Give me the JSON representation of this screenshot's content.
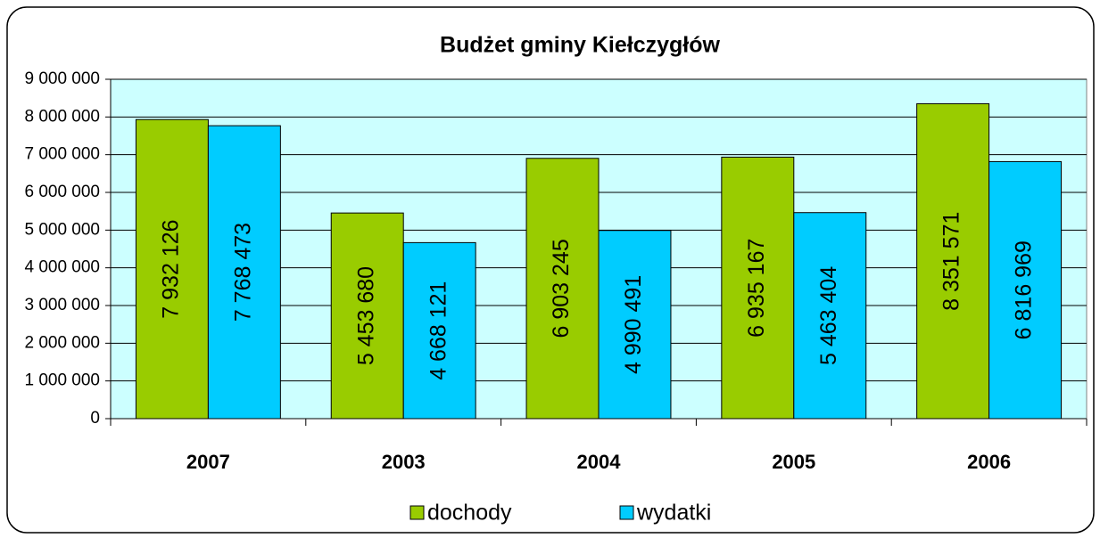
{
  "chart_data": {
    "type": "bar",
    "title": "Budżet gminy Kiełczygłów",
    "categories": [
      "2007",
      "2003",
      "2004",
      "2005",
      "2006"
    ],
    "series": [
      {
        "name": "dochody",
        "color": "#99cc00",
        "values": [
          7932126,
          5453680,
          6903245,
          6935167,
          8351571
        ],
        "value_labels": [
          "7 932 126",
          "5 453 680",
          "6 903 245",
          "6 935 167",
          "8 351 571"
        ]
      },
      {
        "name": "wydatki",
        "color": "#00ccff",
        "values": [
          7768473,
          4668121,
          4990491,
          5463404,
          6816969
        ],
        "value_labels": [
          "7 768 473",
          "4 668 121",
          "4 990 491",
          "5 463 404",
          "6 816 969"
        ]
      }
    ],
    "ylim": [
      0,
      9000000
    ],
    "yticks": [
      0,
      {
        "value": 1000000,
        "label": "1 000 000"
      },
      {
        "value": 2000000,
        "label": "2 000 000"
      },
      {
        "value": 3000000,
        "label": "3 000 000"
      },
      {
        "value": 4000000,
        "label": "4 000 000"
      },
      {
        "value": 5000000,
        "label": "5 000 000"
      },
      {
        "value": 6000000,
        "label": "6 000 000"
      },
      {
        "value": 7000000,
        "label": "7 000 000"
      },
      {
        "value": 8000000,
        "label": "8 000 000"
      },
      {
        "value": 9000000,
        "label": "9 000 000"
      }
    ],
    "grid": true,
    "legend": "bottom",
    "plot_background": "#ccffff"
  }
}
